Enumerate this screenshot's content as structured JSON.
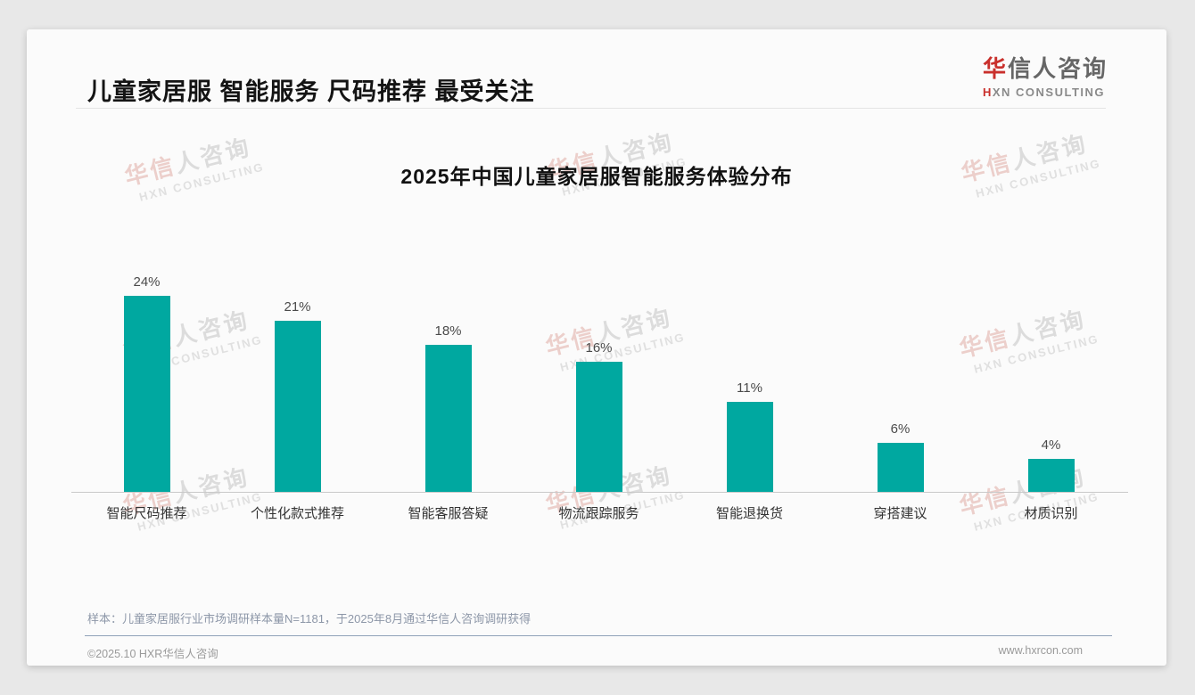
{
  "header": {
    "title": "儿童家居服 智能服务 尺码推荐 最受关注"
  },
  "logo": {
    "cn_accent": "华",
    "cn_rest": "信人咨询",
    "en_accent": "H",
    "en_rest": "XN CONSULTING"
  },
  "watermark": {
    "cn_accent": "华信",
    "cn_rest": "人咨询",
    "english": "HXN CONSULTING"
  },
  "chart_data": {
    "type": "bar",
    "title": "2025年中国儿童家居服智能服务体验分布",
    "categories": [
      "智能尺码推荐",
      "个性化款式推荐",
      "智能客服答疑",
      "物流跟踪服务",
      "智能退换货",
      "穿搭建议",
      "材质识别"
    ],
    "values": [
      24,
      21,
      18,
      16,
      11,
      6,
      4
    ],
    "value_labels": [
      "24%",
      "21%",
      "18%",
      "16%",
      "11%",
      "6%",
      "4%"
    ],
    "unit": "%",
    "xlabel": "",
    "ylabel": "",
    "ylim": [
      0,
      26
    ],
    "grid": false,
    "legend": false,
    "bar_color": "#00a8a0"
  },
  "note": {
    "text": "样本：儿童家居服行业市场调研样本量N=1181，于2025年8月通过华信人咨询调研获得"
  },
  "footer": {
    "copyright": "©2025.10 HXR华信人咨询",
    "website": "www.hxrcon.com"
  },
  "colors": {
    "accent_red": "#c9302c",
    "bar_teal": "#00a8a0",
    "note_slate": "#8d97a8",
    "card_bg": "#fbfbfb",
    "page_bg": "#e8e8e8"
  }
}
